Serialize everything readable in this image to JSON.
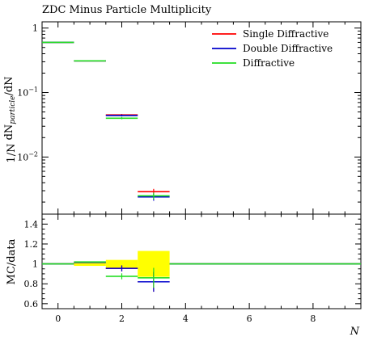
{
  "title": "ZDC Minus Particle Multiplicity",
  "xlabel": "N",
  "ylabel_main_prefix": "1/N",
  "ylabel_main_sub1": "",
  "ylabel_main_mid": " dN",
  "ylabel_main_sub2": "particle",
  "ylabel_main_suffix": "/dN",
  "ylabel_ratio": "MC/data",
  "colors": {
    "single": "#ff0000",
    "double": "#0000cc",
    "diffractive": "#22dd22",
    "band": "#ffff00",
    "axis": "#000000"
  },
  "chart_data": [
    {
      "type": "line",
      "panel": "main",
      "title": "ZDC Minus Particle Multiplicity",
      "yscale": "log",
      "ylim": [
        0.0013,
        1.25
      ],
      "xlim": [
        -0.5,
        9.5
      ],
      "x_ticks": [
        0,
        2,
        4,
        6,
        8
      ],
      "y_ticks": [
        {
          "value": 1,
          "label": "1"
        },
        {
          "value": 0.1,
          "label": "10^-1",
          "base": "10",
          "exp": "−1"
        },
        {
          "value": 0.01,
          "label": "10^-2",
          "base": "10",
          "exp": "−2"
        }
      ],
      "legend": "top-right",
      "series": [
        {
          "name": "Single Diffractive",
          "color_key": "single",
          "bins": [
            [
              -0.5,
              0.5
            ],
            [
              0.5,
              1.5
            ],
            [
              1.5,
              2.5
            ],
            [
              2.5,
              3.5
            ]
          ],
          "values": [
            0.6,
            0.31,
            0.045,
            0.0029
          ],
          "errors": [
            0.004,
            0.003,
            0.0015,
            0.0003
          ]
        },
        {
          "name": "Double Diffractive",
          "color_key": "double",
          "bins": [
            [
              -0.5,
              0.5
            ],
            [
              0.5,
              1.5
            ],
            [
              1.5,
              2.5
            ],
            [
              2.5,
              3.5
            ]
          ],
          "values": [
            0.6,
            0.31,
            0.044,
            0.0024
          ],
          "errors": [
            0.004,
            0.003,
            0.0015,
            0.0003
          ]
        },
        {
          "name": "Diffractive",
          "color_key": "diffractive",
          "bins": [
            [
              -0.5,
              0.5
            ],
            [
              0.5,
              1.5
            ],
            [
              1.5,
              2.5
            ],
            [
              2.5,
              3.5
            ]
          ],
          "values": [
            0.6,
            0.31,
            0.04,
            0.0025
          ],
          "errors": [
            0.004,
            0.003,
            0.0015,
            0.0003
          ]
        }
      ]
    },
    {
      "type": "line",
      "panel": "ratio",
      "ylabel": "MC/data",
      "xlabel": "N",
      "ylim": [
        0.55,
        1.5
      ],
      "xlim": [
        -0.5,
        9.5
      ],
      "x_ticks": [
        0,
        2,
        4,
        6,
        8
      ],
      "y_ticks": [
        0.6,
        0.8,
        1,
        1.2,
        1.4
      ],
      "data_band": {
        "bins": [
          [
            -0.5,
            0.5
          ],
          [
            0.5,
            1.5
          ],
          [
            1.5,
            2.5
          ],
          [
            2.5,
            3.5
          ],
          [
            3.5,
            9.5
          ]
        ],
        "low": [
          0.995,
          0.98,
          0.96,
          0.87,
          1.0
        ],
        "high": [
          1.005,
          1.02,
          1.04,
          1.13,
          1.0
        ]
      },
      "series": [
        {
          "name": "Single Diffractive",
          "color_key": "single",
          "bins": [
            [
              -0.5,
              0.5
            ],
            [
              0.5,
              1.5
            ],
            [
              1.5,
              2.5
            ],
            [
              2.5,
              3.5
            ],
            [
              3.5,
              9.5
            ]
          ],
          "values": [
            1.0,
            1.015,
            0.955,
            0.82,
            1.0
          ],
          "errors": [
            0.0,
            0.0,
            0.03,
            0.1,
            0.0
          ]
        },
        {
          "name": "Double Diffractive",
          "color_key": "double",
          "bins": [
            [
              -0.5,
              0.5
            ],
            [
              0.5,
              1.5
            ],
            [
              1.5,
              2.5
            ],
            [
              2.5,
              3.5
            ],
            [
              3.5,
              9.5
            ]
          ],
          "values": [
            1.0,
            1.015,
            0.955,
            0.82,
            1.0
          ],
          "errors": [
            0.0,
            0.0,
            0.03,
            0.1,
            0.0
          ]
        },
        {
          "name": "Diffractive",
          "color_key": "diffractive",
          "bins": [
            [
              -0.5,
              0.5
            ],
            [
              0.5,
              1.5
            ],
            [
              1.5,
              2.5
            ],
            [
              2.5,
              3.5
            ],
            [
              3.5,
              9.5
            ]
          ],
          "values": [
            1.0,
            1.02,
            0.875,
            0.86,
            1.0
          ],
          "errors": [
            0.0,
            0.0,
            0.03,
            0.1,
            0.0
          ]
        }
      ]
    }
  ]
}
